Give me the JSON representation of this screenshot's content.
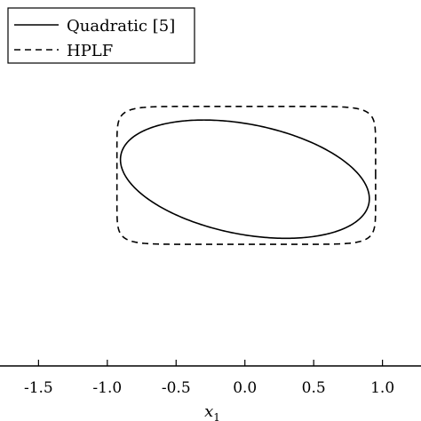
{
  "chart_data": {
    "type": "line",
    "xlabel": "x",
    "xlabel_subscript": "1",
    "xlim": [
      -1.78,
      1.28
    ],
    "ylim": [
      -1.62,
      1.75
    ],
    "x_ticks": [
      -1.5,
      -1.0,
      -0.5,
      0.0,
      0.5,
      1.0
    ],
    "x_tick_labels": [
      "-1.5",
      "-1.0",
      "-0.5",
      "0.0",
      "0.5",
      "1.0"
    ],
    "legend_placement": "top-left",
    "grid": false,
    "series": [
      {
        "name": "Quadratic [5]",
        "style": "solid",
        "color": "#000000",
        "shape": "ellipse",
        "center": [
          0.0,
          0.1
        ],
        "semi_axes": [
          0.93,
          0.5
        ],
        "rotation_deg": -16
      },
      {
        "name": "HPLF",
        "style": "dashed",
        "color": "#000000",
        "shape": "superellipse",
        "x": [
          -0.93,
          0.95
        ],
        "y": [
          -0.5,
          0.77
        ],
        "corner_exponent": 9
      }
    ]
  }
}
